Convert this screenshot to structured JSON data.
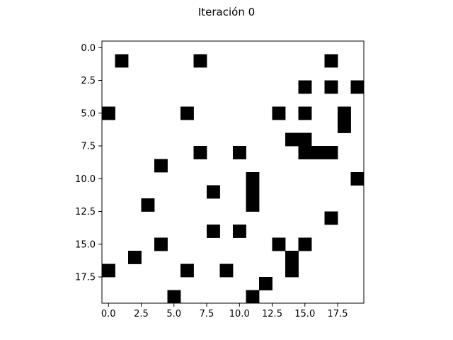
{
  "chart_data": {
    "type": "heatmap",
    "title": "Iteración 0",
    "xlabel": "",
    "ylabel": "",
    "grid": false,
    "colormap": {
      "0": "#ffffff",
      "1": "#000000"
    },
    "rows": 20,
    "cols": 20,
    "xlim": [
      -0.5,
      19.5
    ],
    "ylim": [
      19.5,
      -0.5
    ],
    "x_ticks": [
      0.0,
      2.5,
      5.0,
      7.5,
      10.0,
      12.5,
      15.0,
      17.5
    ],
    "x_tick_labels": [
      "0.0",
      "2.5",
      "5.0",
      "7.5",
      "10.0",
      "12.5",
      "15.0",
      "17.5"
    ],
    "y_ticks": [
      0.0,
      2.5,
      5.0,
      7.5,
      10.0,
      12.5,
      15.0,
      17.5
    ],
    "y_tick_labels": [
      "0.0",
      "2.5",
      "5.0",
      "7.5",
      "10.0",
      "12.5",
      "15.0",
      "17.5"
    ],
    "cells": [
      {
        "row": 1,
        "col": 1
      },
      {
        "row": 1,
        "col": 7
      },
      {
        "row": 1,
        "col": 17
      },
      {
        "row": 3,
        "col": 15
      },
      {
        "row": 3,
        "col": 17
      },
      {
        "row": 3,
        "col": 19
      },
      {
        "row": 5,
        "col": 0
      },
      {
        "row": 5,
        "col": 6
      },
      {
        "row": 5,
        "col": 13
      },
      {
        "row": 5,
        "col": 15
      },
      {
        "row": 5,
        "col": 18
      },
      {
        "row": 6,
        "col": 18
      },
      {
        "row": 7,
        "col": 14
      },
      {
        "row": 7,
        "col": 15
      },
      {
        "row": 8,
        "col": 7
      },
      {
        "row": 8,
        "col": 10
      },
      {
        "row": 8,
        "col": 15
      },
      {
        "row": 8,
        "col": 16
      },
      {
        "row": 8,
        "col": 17
      },
      {
        "row": 9,
        "col": 4
      },
      {
        "row": 10,
        "col": 11
      },
      {
        "row": 10,
        "col": 19
      },
      {
        "row": 11,
        "col": 8
      },
      {
        "row": 11,
        "col": 11
      },
      {
        "row": 12,
        "col": 3
      },
      {
        "row": 12,
        "col": 11
      },
      {
        "row": 13,
        "col": 17
      },
      {
        "row": 14,
        "col": 8
      },
      {
        "row": 14,
        "col": 10
      },
      {
        "row": 15,
        "col": 4
      },
      {
        "row": 15,
        "col": 13
      },
      {
        "row": 15,
        "col": 15
      },
      {
        "row": 16,
        "col": 2
      },
      {
        "row": 16,
        "col": 14
      },
      {
        "row": 17,
        "col": 0
      },
      {
        "row": 17,
        "col": 6
      },
      {
        "row": 17,
        "col": 9
      },
      {
        "row": 17,
        "col": 14
      },
      {
        "row": 18,
        "col": 12
      },
      {
        "row": 19,
        "col": 5
      },
      {
        "row": 19,
        "col": 11
      }
    ]
  }
}
